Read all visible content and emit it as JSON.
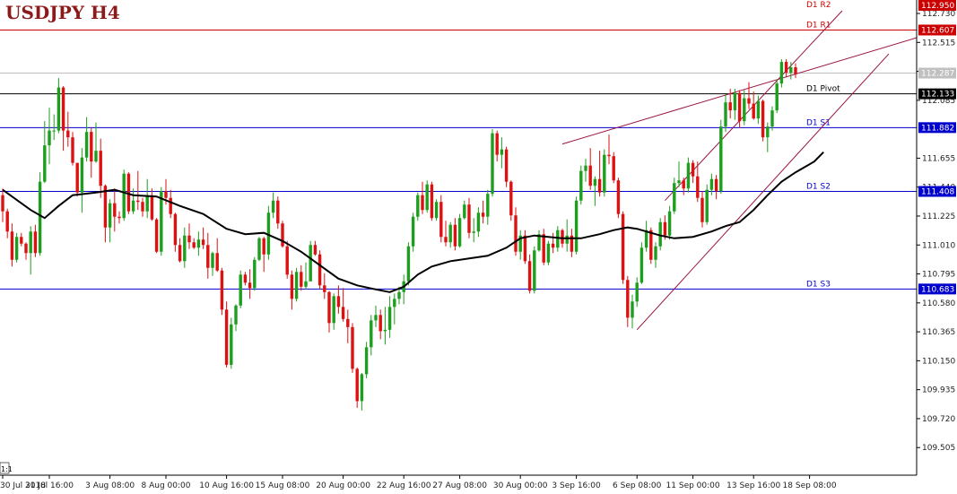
{
  "chart_data": {
    "type": "candlestick",
    "title": "USDJPY H4",
    "ylim": [
      109.3,
      112.83
    ],
    "y_ticks": [
      "112.950",
      "112.730",
      "112.515",
      "112.300",
      "112.085",
      "111.655",
      "111.440",
      "111.225",
      "111.010",
      "110.795",
      "110.580",
      "110.365",
      "110.150",
      "109.935",
      "109.720",
      "109.505"
    ],
    "x_ticks": [
      {
        "label": "30 Jul 2018",
        "bar": 0
      },
      {
        "label": "31 Jul 16:00",
        "bar": 10
      },
      {
        "label": "3 Aug 08:00",
        "bar": 23
      },
      {
        "label": "8 Aug 00:00",
        "bar": 35
      },
      {
        "label": "10 Aug 16:00",
        "bar": 48
      },
      {
        "label": "15 Aug 08:00",
        "bar": 60
      },
      {
        "label": "20 Aug 00:00",
        "bar": 73
      },
      {
        "label": "22 Aug 16:00",
        "bar": 86
      },
      {
        "label": "27 Aug 08:00",
        "bar": 98
      },
      {
        "label": "30 Aug 00:00",
        "bar": 111
      },
      {
        "label": "3 Sep 16:00",
        "bar": 123
      },
      {
        "label": "6 Sep 08:00",
        "bar": 136
      },
      {
        "label": "11 Sep 00:00",
        "bar": 148
      },
      {
        "label": "13 Sep 16:00",
        "bar": 161
      },
      {
        "label": "18 Sep 08:00",
        "bar": 173
      }
    ],
    "x_corner_label": "1:1",
    "levels": [
      {
        "name": "D1 R2",
        "value": 112.95,
        "color": "#cc0000",
        "show_line": false
      },
      {
        "name": "D1 R1",
        "value": 112.607,
        "color": "#cc0000",
        "show_line": true
      },
      {
        "name": "D1 Pivot",
        "value": 112.133,
        "color": "#000000",
        "show_line": true
      },
      {
        "name": "D1 S1",
        "value": 111.882,
        "color": "#0000cc",
        "show_line": true
      },
      {
        "name": "D1 S2",
        "value": 111.408,
        "color": "#0000cc",
        "show_line": true
      },
      {
        "name": "D1 S3",
        "value": 110.683,
        "color": "#0000cc",
        "show_line": true
      }
    ],
    "level_box_labels": [
      "112.607",
      "112.133",
      "111.882",
      "111.408",
      "110.683"
    ],
    "current_price": {
      "value": 112.287,
      "label": "112.287",
      "color": "#c0c0c0"
    },
    "top_box_label": "112.950",
    "channel_lines": [
      {
        "from": [
          120,
          111.76
        ],
        "to": [
          196,
          112.55
        ]
      },
      {
        "from": [
          142,
          111.34
        ],
        "to": [
          180,
          112.75
        ]
      },
      {
        "from": [
          136,
          110.38
        ],
        "to": [
          190,
          112.43
        ]
      }
    ],
    "candle_up_color": "#1e9e1e",
    "candle_down_color": "#dd1111",
    "ma_color": "#000000",
    "ohlc": [
      [
        111.38,
        111.43,
        111.18,
        111.26
      ],
      [
        111.26,
        111.28,
        111.06,
        111.11
      ],
      [
        111.11,
        111.17,
        110.85,
        110.9
      ],
      [
        110.9,
        111.1,
        110.88,
        111.07
      ],
      [
        111.07,
        111.1,
        111.0,
        111.02
      ],
      [
        111.02,
        111.03,
        110.9,
        110.95
      ],
      [
        110.95,
        111.15,
        110.79,
        111.11
      ],
      [
        111.11,
        111.16,
        110.92,
        110.95
      ],
      [
        110.95,
        111.55,
        110.93,
        111.48
      ],
      [
        111.48,
        111.93,
        111.47,
        111.75
      ],
      [
        111.75,
        112.03,
        111.61,
        111.86
      ],
      [
        111.86,
        111.98,
        111.79,
        111.86
      ],
      [
        111.86,
        112.25,
        111.84,
        112.18
      ],
      [
        112.18,
        112.19,
        111.71,
        111.86
      ],
      [
        111.86,
        112.0,
        111.74,
        111.81
      ],
      [
        111.81,
        111.85,
        111.6,
        111.62
      ],
      [
        111.62,
        111.62,
        111.37,
        111.4
      ],
      [
        111.4,
        111.73,
        111.25,
        111.66
      ],
      [
        111.66,
        111.96,
        111.63,
        111.85
      ],
      [
        111.85,
        111.88,
        111.51,
        111.63
      ],
      [
        111.63,
        111.92,
        111.62,
        111.71
      ],
      [
        111.71,
        111.8,
        111.36,
        111.45
      ],
      [
        111.45,
        111.46,
        111.03,
        111.14
      ],
      [
        111.14,
        111.35,
        111.03,
        111.32
      ],
      [
        111.32,
        111.43,
        111.11,
        111.22
      ],
      [
        111.22,
        111.26,
        111.17,
        111.21
      ],
      [
        111.21,
        111.57,
        111.19,
        111.54
      ],
      [
        111.54,
        111.55,
        111.24,
        111.26
      ],
      [
        111.26,
        111.43,
        111.24,
        111.34
      ],
      [
        111.34,
        111.56,
        111.27,
        111.33
      ],
      [
        111.33,
        111.36,
        111.22,
        111.26
      ],
      [
        111.26,
        111.5,
        111.21,
        111.38
      ],
      [
        111.38,
        111.43,
        111.19,
        111.2
      ],
      [
        111.2,
        111.21,
        110.95,
        110.96
      ],
      [
        110.96,
        111.44,
        110.93,
        111.41
      ],
      [
        111.41,
        111.5,
        111.31,
        111.36
      ],
      [
        111.36,
        111.42,
        111.21,
        111.24
      ],
      [
        111.24,
        111.25,
        110.96,
        111.01
      ],
      [
        111.01,
        111.06,
        110.88,
        110.89
      ],
      [
        110.89,
        111.14,
        110.84,
        111.08
      ],
      [
        111.08,
        111.17,
        110.98,
        111.03
      ],
      [
        111.03,
        111.06,
        110.98,
        110.99
      ],
      [
        110.99,
        111.11,
        110.93,
        111.05
      ],
      [
        111.05,
        111.14,
        110.98,
        111.01
      ],
      [
        111.01,
        111.1,
        110.76,
        110.84
      ],
      [
        110.84,
        110.96,
        110.78,
        110.95
      ],
      [
        110.95,
        111.06,
        110.81,
        110.82
      ],
      [
        110.82,
        110.84,
        110.49,
        110.53
      ],
      [
        110.53,
        110.59,
        110.1,
        110.12
      ],
      [
        110.12,
        110.47,
        110.09,
        110.42
      ],
      [
        110.42,
        110.57,
        110.37,
        110.56
      ],
      [
        110.56,
        110.82,
        110.54,
        110.79
      ],
      [
        110.79,
        110.81,
        110.71,
        110.73
      ],
      [
        110.73,
        110.83,
        110.61,
        110.69
      ],
      [
        110.69,
        110.92,
        110.67,
        110.9
      ],
      [
        110.9,
        111.07,
        110.89,
        111.06
      ],
      [
        111.06,
        111.07,
        110.81,
        110.94
      ],
      [
        110.94,
        111.3,
        110.9,
        111.25
      ],
      [
        111.25,
        111.4,
        111.21,
        111.34
      ],
      [
        111.34,
        111.37,
        111.13,
        111.17
      ],
      [
        111.17,
        111.19,
        110.99,
        111.0
      ],
      [
        111.0,
        111.04,
        110.76,
        110.79
      ],
      [
        110.79,
        110.82,
        110.53,
        110.61
      ],
      [
        110.61,
        110.84,
        110.59,
        110.81
      ],
      [
        110.81,
        110.86,
        110.67,
        110.7
      ],
      [
        110.7,
        110.88,
        110.68,
        110.74
      ],
      [
        110.74,
        111.04,
        110.74,
        111.01
      ],
      [
        111.01,
        111.04,
        110.93,
        110.94
      ],
      [
        110.94,
        110.97,
        110.68,
        110.71
      ],
      [
        110.71,
        110.8,
        110.61,
        110.66
      ],
      [
        110.66,
        110.67,
        110.36,
        110.43
      ],
      [
        110.43,
        110.65,
        110.38,
        110.63
      ],
      [
        110.63,
        110.71,
        110.5,
        110.55
      ],
      [
        110.55,
        110.69,
        110.44,
        110.46
      ],
      [
        110.46,
        110.53,
        110.28,
        110.4
      ],
      [
        110.4,
        110.43,
        110.06,
        110.09
      ],
      [
        110.09,
        110.1,
        109.8,
        109.85
      ],
      [
        109.85,
        110.06,
        109.78,
        110.05
      ],
      [
        110.05,
        110.29,
        110.02,
        110.25
      ],
      [
        110.25,
        110.49,
        110.19,
        110.45
      ],
      [
        110.45,
        110.56,
        110.4,
        110.49
      ],
      [
        110.49,
        110.53,
        110.31,
        110.37
      ],
      [
        110.37,
        110.55,
        110.27,
        110.38
      ],
      [
        110.38,
        110.63,
        110.32,
        110.55
      ],
      [
        110.55,
        110.65,
        110.42,
        110.61
      ],
      [
        110.61,
        110.7,
        110.57,
        110.66
      ],
      [
        110.66,
        110.79,
        110.57,
        110.74
      ],
      [
        110.74,
        111.03,
        110.71,
        111.0
      ],
      [
        111.0,
        111.25,
        110.96,
        111.22
      ],
      [
        111.22,
        111.4,
        111.19,
        111.38
      ],
      [
        111.38,
        111.48,
        111.24,
        111.27
      ],
      [
        111.27,
        111.49,
        111.25,
        111.46
      ],
      [
        111.46,
        111.48,
        111.19,
        111.21
      ],
      [
        111.21,
        111.35,
        111.19,
        111.33
      ],
      [
        111.33,
        111.38,
        111.03,
        111.07
      ],
      [
        111.07,
        111.19,
        111.0,
        111.03
      ],
      [
        111.03,
        111.18,
        110.99,
        111.16
      ],
      [
        111.16,
        111.21,
        110.97,
        111.0
      ],
      [
        111.0,
        111.24,
        110.99,
        111.21
      ],
      [
        111.21,
        111.34,
        111.2,
        111.31
      ],
      [
        111.31,
        111.36,
        111.06,
        111.1
      ],
      [
        111.1,
        111.21,
        111.03,
        111.11
      ],
      [
        111.11,
        111.29,
        111.07,
        111.25
      ],
      [
        111.25,
        111.34,
        111.17,
        111.22
      ],
      [
        111.22,
        111.42,
        111.16,
        111.39
      ],
      [
        111.39,
        111.87,
        111.37,
        111.84
      ],
      [
        111.84,
        111.86,
        111.63,
        111.68
      ],
      [
        111.68,
        111.81,
        111.58,
        111.72
      ],
      [
        111.72,
        111.74,
        111.44,
        111.48
      ],
      [
        111.48,
        111.49,
        111.19,
        111.23
      ],
      [
        111.23,
        111.29,
        110.93,
        110.96
      ],
      [
        110.96,
        111.12,
        110.9,
        111.08
      ],
      [
        111.08,
        111.12,
        110.87,
        110.89
      ],
      [
        110.89,
        110.94,
        110.65,
        110.67
      ],
      [
        110.67,
        111.0,
        110.65,
        110.97
      ],
      [
        110.97,
        111.12,
        110.96,
        111.09
      ],
      [
        111.09,
        111.13,
        110.86,
        110.88
      ],
      [
        110.88,
        111.04,
        110.86,
        111.02
      ],
      [
        111.02,
        111.1,
        110.95,
        110.99
      ],
      [
        110.99,
        111.15,
        110.96,
        111.12
      ],
      [
        111.12,
        111.13,
        110.99,
        111.02
      ],
      [
        111.02,
        111.2,
        110.96,
        111.08
      ],
      [
        111.08,
        111.13,
        110.92,
        110.96
      ],
      [
        110.96,
        111.37,
        110.94,
        111.34
      ],
      [
        111.34,
        111.6,
        111.31,
        111.56
      ],
      [
        111.56,
        111.65,
        111.48,
        111.6
      ],
      [
        111.6,
        111.73,
        111.42,
        111.45
      ],
      [
        111.45,
        111.52,
        111.3,
        111.5
      ],
      [
        111.5,
        111.71,
        111.37,
        111.4
      ],
      [
        111.4,
        111.72,
        111.37,
        111.68
      ],
      [
        111.68,
        111.83,
        111.61,
        111.67
      ],
      [
        111.67,
        111.7,
        111.47,
        111.49
      ],
      [
        111.49,
        111.51,
        111.21,
        111.24
      ],
      [
        111.24,
        111.26,
        110.72,
        110.75
      ],
      [
        110.75,
        110.78,
        110.4,
        110.47
      ],
      [
        110.47,
        110.64,
        110.39,
        110.59
      ],
      [
        110.59,
        110.77,
        110.55,
        110.73
      ],
      [
        110.73,
        111.03,
        110.72,
        110.99
      ],
      [
        110.99,
        111.19,
        110.96,
        111.12
      ],
      [
        111.12,
        111.14,
        110.87,
        110.9
      ],
      [
        110.9,
        111.03,
        110.84,
        111.0
      ],
      [
        111.0,
        111.21,
        110.97,
        111.18
      ],
      [
        111.18,
        111.23,
        111.05,
        111.08
      ],
      [
        111.08,
        111.3,
        111.05,
        111.26
      ],
      [
        111.26,
        111.51,
        111.24,
        111.47
      ],
      [
        111.47,
        111.63,
        111.44,
        111.49
      ],
      [
        111.49,
        111.51,
        111.38,
        111.43
      ],
      [
        111.43,
        111.66,
        111.4,
        111.62
      ],
      [
        111.62,
        111.64,
        111.47,
        111.52
      ],
      [
        111.52,
        111.63,
        111.33,
        111.36
      ],
      [
        111.36,
        111.41,
        111.14,
        111.18
      ],
      [
        111.18,
        111.46,
        111.16,
        111.42
      ],
      [
        111.42,
        111.54,
        111.38,
        111.5
      ],
      [
        111.5,
        111.53,
        111.35,
        111.41
      ],
      [
        111.41,
        111.94,
        111.39,
        111.89
      ],
      [
        111.89,
        112.13,
        111.85,
        112.07
      ],
      [
        112.07,
        112.17,
        111.95,
        112.01
      ],
      [
        112.01,
        112.17,
        111.94,
        112.14
      ],
      [
        112.14,
        112.16,
        111.88,
        111.93
      ],
      [
        111.93,
        112.16,
        111.9,
        112.1
      ],
      [
        112.1,
        112.22,
        112.02,
        112.06
      ],
      [
        112.06,
        112.15,
        111.94,
        111.95
      ],
      [
        111.95,
        112.12,
        111.91,
        112.08
      ],
      [
        112.08,
        112.09,
        111.78,
        111.81
      ],
      [
        111.81,
        111.92,
        111.7,
        111.89
      ],
      [
        111.89,
        112.04,
        111.86,
        112.01
      ],
      [
        112.01,
        112.24,
        111.99,
        112.21
      ],
      [
        112.21,
        112.39,
        112.18,
        112.37
      ],
      [
        112.37,
        112.39,
        112.26,
        112.29
      ],
      [
        112.29,
        112.37,
        112.24,
        112.33
      ],
      [
        112.33,
        112.36,
        112.25,
        112.28
      ]
    ],
    "ma": [
      [
        0,
        111.42
      ],
      [
        6,
        111.27
      ],
      [
        9,
        111.21
      ],
      [
        12,
        111.3
      ],
      [
        15,
        111.38
      ],
      [
        20,
        111.4
      ],
      [
        24,
        111.42
      ],
      [
        28,
        111.38
      ],
      [
        33,
        111.37
      ],
      [
        38,
        111.3
      ],
      [
        43,
        111.24
      ],
      [
        48,
        111.13
      ],
      [
        52,
        111.09
      ],
      [
        56,
        111.1
      ],
      [
        60,
        111.04
      ],
      [
        64,
        110.96
      ],
      [
        68,
        110.86
      ],
      [
        72,
        110.76
      ],
      [
        76,
        110.71
      ],
      [
        80,
        110.68
      ],
      [
        83,
        110.66
      ],
      [
        86,
        110.7
      ],
      [
        89,
        110.79
      ],
      [
        92,
        110.85
      ],
      [
        96,
        110.89
      ],
      [
        100,
        110.91
      ],
      [
        104,
        110.93
      ],
      [
        108,
        110.99
      ],
      [
        111,
        111.06
      ],
      [
        114,
        111.08
      ],
      [
        117,
        111.07
      ],
      [
        120,
        111.06
      ],
      [
        124,
        111.06
      ],
      [
        128,
        111.09
      ],
      [
        131,
        111.12
      ],
      [
        134,
        111.14
      ],
      [
        136,
        111.13
      ],
      [
        138,
        111.11
      ],
      [
        141,
        111.08
      ],
      [
        144,
        111.06
      ],
      [
        148,
        111.07
      ],
      [
        152,
        111.11
      ],
      [
        155,
        111.15
      ],
      [
        158,
        111.18
      ],
      [
        161,
        111.27
      ],
      [
        164,
        111.38
      ],
      [
        167,
        111.48
      ],
      [
        170,
        111.55
      ],
      [
        172,
        111.59
      ],
      [
        174,
        111.63
      ],
      [
        176,
        111.7
      ]
    ]
  }
}
